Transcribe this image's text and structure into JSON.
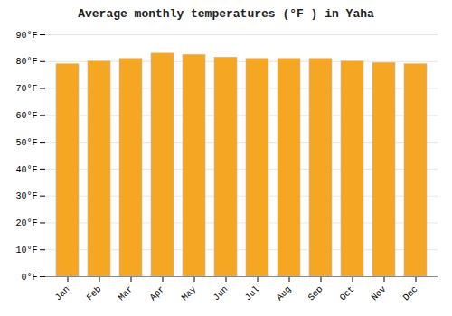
{
  "chart_data": {
    "type": "bar",
    "title": "Average monthly temperatures (°F ) in Yaha",
    "categories": [
      "Jan",
      "Feb",
      "Mar",
      "Apr",
      "May",
      "Jun",
      "Jul",
      "Aug",
      "Sep",
      "Oct",
      "Nov",
      "Dec"
    ],
    "values": [
      79.0,
      80.0,
      81.0,
      83.0,
      82.5,
      81.5,
      81.0,
      81.0,
      81.0,
      80.0,
      79.5,
      79.0
    ],
    "color": "#F5A623",
    "ylim": [
      0,
      90
    ],
    "yticks": [
      {
        "value": 0,
        "label": "0°F"
      },
      {
        "value": 10,
        "label": "10°F"
      },
      {
        "value": 20,
        "label": "20°F"
      },
      {
        "value": 30,
        "label": "30°F"
      },
      {
        "value": 40,
        "label": "40°F"
      },
      {
        "value": 50,
        "label": "50°F"
      },
      {
        "value": 60,
        "label": "60°F"
      },
      {
        "value": 70,
        "label": "70°F"
      },
      {
        "value": 80,
        "label": "80°F"
      },
      {
        "value": 90,
        "label": "90°F"
      }
    ],
    "grid": true
  }
}
